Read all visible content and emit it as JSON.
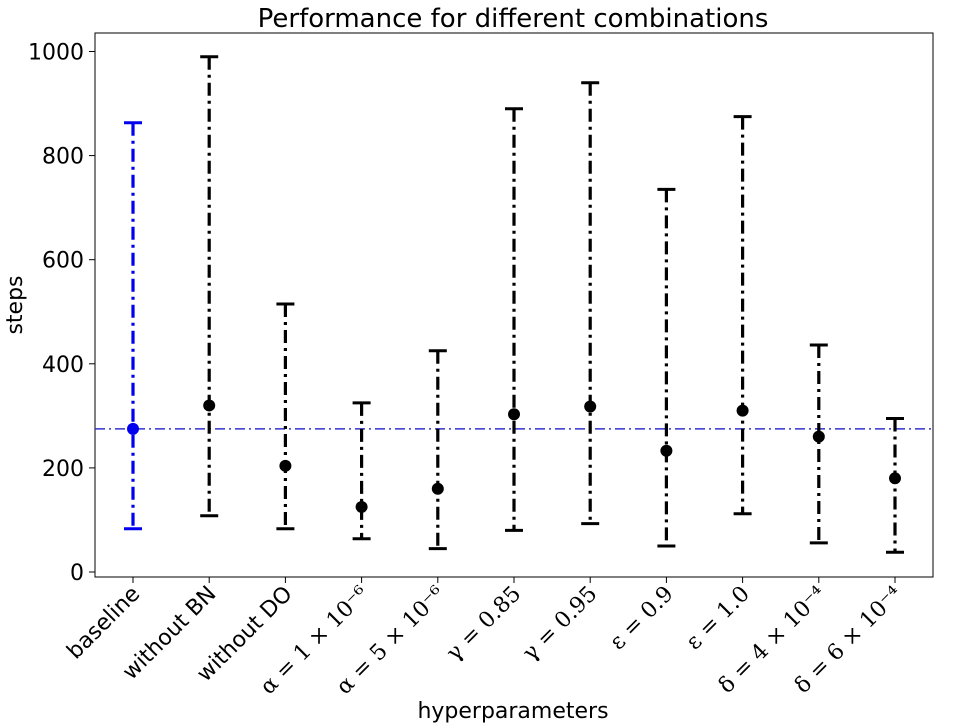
{
  "chart_data": {
    "type": "errorbar",
    "title": "Performance for different combinations",
    "xlabel": "hyperparameters",
    "ylabel": "steps",
    "ylim": [
      -10,
      1035
    ],
    "yticks": [
      0,
      200,
      400,
      600,
      800,
      1000
    ],
    "grid": false,
    "reference_line": {
      "value": 275,
      "style": "dash-dot",
      "color": "#3333cc"
    },
    "points": [
      {
        "label": "baseline",
        "mean": 275,
        "lower": 83,
        "upper": 863,
        "color": "#0000ee"
      },
      {
        "label": "without BN",
        "mean": 320,
        "lower": 108,
        "upper": 990,
        "color": "#000000"
      },
      {
        "label": "without DO",
        "mean": 204,
        "lower": 83,
        "upper": 515,
        "color": "#000000"
      },
      {
        "label": "α = 1 × 10⁻⁶",
        "mean": 125,
        "lower": 64,
        "upper": 325,
        "color": "#000000"
      },
      {
        "label": "α = 5 × 10⁻⁶",
        "mean": 160,
        "lower": 45,
        "upper": 425,
        "color": "#000000"
      },
      {
        "label": "γ = 0.85",
        "mean": 303,
        "lower": 80,
        "upper": 890,
        "color": "#000000"
      },
      {
        "label": "γ = 0.95",
        "mean": 318,
        "lower": 93,
        "upper": 940,
        "color": "#000000"
      },
      {
        "label": "ε = 0.9",
        "mean": 233,
        "lower": 50,
        "upper": 735,
        "color": "#000000"
      },
      {
        "label": "ε = 1.0",
        "mean": 310,
        "lower": 112,
        "upper": 875,
        "color": "#000000"
      },
      {
        "label": "δ = 4 × 10⁻⁴",
        "mean": 260,
        "lower": 56,
        "upper": 436,
        "color": "#000000"
      },
      {
        "label": "δ = 6 × 10⁻⁴",
        "mean": 180,
        "lower": 38,
        "upper": 295,
        "color": "#000000"
      }
    ]
  }
}
